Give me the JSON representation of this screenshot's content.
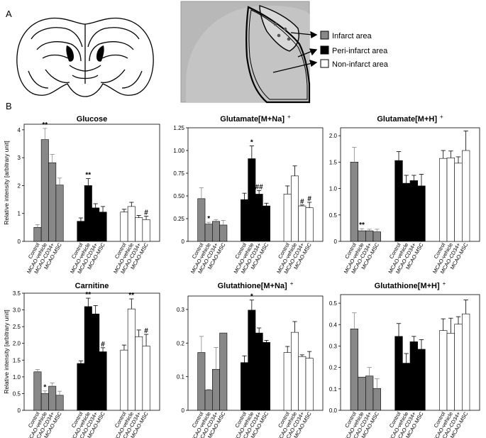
{
  "panel_labels": {
    "a": "A",
    "b": "B"
  },
  "legend": [
    {
      "label": "Infarct area",
      "color": "#888888"
    },
    {
      "label": "Peri-infarct area",
      "color": "#000000"
    },
    {
      "label": "Non-infarct area",
      "color": "#ffffff"
    }
  ],
  "colors": {
    "infarct": "#888888",
    "peri": "#000000",
    "non": "#ffffff",
    "stroke": "#000000"
  },
  "chart_data": [
    {
      "type": "bar",
      "title": "Glucose",
      "ylabel": "Relative intensity [arbitrary unit]",
      "ylim": [
        0,
        4.2
      ],
      "yticks": [
        0,
        1,
        2,
        3,
        4
      ],
      "yticklabels": [
        "0",
        "1",
        "2",
        "3",
        "4"
      ],
      "categories": [
        "Control",
        "MCAO-vehicle",
        "MCAO-CD34+",
        "MCAO-MSC"
      ],
      "series": [
        {
          "name": "Infarct area",
          "values": [
            0.5,
            3.65,
            2.82,
            2.02
          ],
          "errors": [
            0.1,
            0.4,
            0.3,
            0.25
          ],
          "marks": [
            "",
            "**",
            "",
            ""
          ]
        },
        {
          "name": "Peri-infarct area",
          "values": [
            0.72,
            2.0,
            1.2,
            1.05
          ],
          "errors": [
            0.12,
            0.25,
            0.15,
            0.2
          ],
          "marks": [
            "",
            "**",
            "",
            ""
          ]
        },
        {
          "name": "Non-infarct area",
          "values": [
            1.05,
            1.25,
            0.85,
            0.78
          ],
          "errors": [
            0.1,
            0.15,
            0.08,
            0.12
          ],
          "marks": [
            "",
            "",
            "",
            "#"
          ]
        }
      ]
    },
    {
      "type": "bar",
      "title": "Glutamate[M+Na]",
      "title_sup": "+",
      "ylabel": "",
      "ylim": [
        0,
        1.25
      ],
      "yticks": [
        0,
        0.25,
        0.5,
        0.75,
        1.0,
        1.25
      ],
      "yticklabels": [
        "0",
        "0.25",
        "0.50",
        "0.75",
        "1.00",
        "1.25"
      ],
      "categories": [
        "Control",
        "MCAO-vehicle",
        "MCAO-CD34+",
        "MCAO-MSC"
      ],
      "series": [
        {
          "name": "Infarct area",
          "values": [
            0.47,
            0.19,
            0.22,
            0.18
          ],
          "errors": [
            0.12,
            0.02,
            0.02,
            0.05
          ],
          "marks": [
            "",
            "*",
            "",
            ""
          ]
        },
        {
          "name": "Peri-infarct area",
          "values": [
            0.46,
            0.91,
            0.52,
            0.39
          ],
          "errors": [
            0.07,
            0.14,
            0.04,
            0.03
          ],
          "marks": [
            "",
            "*",
            "##",
            ""
          ]
        },
        {
          "name": "Non-infarct area",
          "values": [
            0.52,
            0.72,
            0.39,
            0.37
          ],
          "errors": [
            0.09,
            0.11,
            0.01,
            0.06
          ],
          "marks": [
            "",
            "",
            "#",
            "#"
          ]
        }
      ]
    },
    {
      "type": "bar",
      "title": "Glutamate[M+H]",
      "title_sup": "+",
      "ylabel": "",
      "ylim": [
        0,
        2.15
      ],
      "yticks": [
        0,
        0.5,
        1.0,
        1.5,
        2.0
      ],
      "yticklabels": [
        "0",
        "0.5",
        "1.0",
        "1.5",
        "2.0"
      ],
      "categories": [
        "Control",
        "MCAO-vehicle",
        "MCAO-CD34+",
        "MCAO-MSC"
      ],
      "series": [
        {
          "name": "Infarct area",
          "values": [
            1.5,
            0.2,
            0.2,
            0.18
          ],
          "errors": [
            0.28,
            0.04,
            0.03,
            0.05
          ],
          "marks": [
            "",
            "**",
            "",
            ""
          ]
        },
        {
          "name": "Peri-infarct area",
          "values": [
            1.53,
            1.1,
            1.15,
            1.05
          ],
          "errors": [
            0.17,
            0.15,
            0.1,
            0.22
          ],
          "marks": [
            "",
            "",
            "",
            ""
          ]
        },
        {
          "name": "Non-infarct area",
          "values": [
            1.57,
            1.58,
            1.48,
            1.72
          ],
          "errors": [
            0.15,
            0.13,
            0.12,
            0.37
          ],
          "marks": [
            "",
            "",
            "",
            ""
          ]
        }
      ]
    },
    {
      "type": "bar",
      "title": "Carnitine",
      "ylabel": "Relative intensity [arbitrary unit]",
      "ylim": [
        0,
        3.5
      ],
      "yticks": [
        0,
        0.5,
        1.0,
        1.5,
        2.0,
        2.5,
        3.0,
        3.5
      ],
      "yticklabels": [
        "0",
        "0.5",
        "1.0",
        "1.5",
        "2.0",
        "2.5",
        "3.0",
        "3.5"
      ],
      "categories": [
        "Control",
        "MCAO-vehicle",
        "MCAO-CD34+",
        "MCAO-MSC"
      ],
      "series": [
        {
          "name": "Infarct area",
          "values": [
            1.15,
            0.5,
            0.72,
            0.45
          ],
          "errors": [
            0.07,
            0.08,
            0.1,
            0.12
          ],
          "marks": [
            "",
            "*",
            "",
            ""
          ]
        },
        {
          "name": "Peri-infarct area",
          "values": [
            1.4,
            3.1,
            2.88,
            1.75
          ],
          "errors": [
            0.08,
            0.25,
            0.25,
            0.12
          ],
          "marks": [
            "",
            "**",
            "",
            "#"
          ]
        },
        {
          "name": "Non-infarct area",
          "values": [
            1.8,
            3.03,
            2.2,
            1.92
          ],
          "errors": [
            0.15,
            0.3,
            0.2,
            0.35
          ],
          "marks": [
            "",
            "**",
            "",
            "#"
          ]
        }
      ]
    },
    {
      "type": "bar",
      "title": "Glutathione[M+Na]",
      "title_sup": "+",
      "ylabel": "",
      "ylim": [
        0,
        0.34
      ],
      "yticks": [
        0,
        0.1,
        0.2,
        0.3
      ],
      "yticklabels": [
        "0",
        "0.1",
        "0.2",
        "0.3"
      ],
      "categories": [
        "Control",
        "MCAO-vehicle",
        "MCAO-CD34+",
        "MCAO-MSC"
      ],
      "series": [
        {
          "name": "Infarct area",
          "values": [
            0.172,
            0.06,
            0.122,
            0.23
          ],
          "errors": [
            0.048,
            0.002,
            0.065,
            0.0
          ],
          "marks": [
            "",
            "",
            "",
            ""
          ]
        },
        {
          "name": "Peri-infarct area",
          "values": [
            0.142,
            0.298,
            0.23,
            0.202
          ],
          "errors": [
            0.02,
            0.03,
            0.015,
            0.006
          ],
          "marks": [
            "",
            "*",
            "",
            ""
          ]
        },
        {
          "name": "Non-infarct area",
          "values": [
            0.172,
            0.232,
            0.16,
            0.155
          ],
          "errors": [
            0.018,
            0.032,
            0.005,
            0.02
          ],
          "marks": [
            "",
            "",
            "",
            ""
          ]
        }
      ]
    },
    {
      "type": "bar",
      "title": "Glutathione[M+H]",
      "title_sup": "+",
      "ylabel": "",
      "ylim": [
        0,
        0.54
      ],
      "yticks": [
        0,
        0.1,
        0.2,
        0.3,
        0.4,
        0.5
      ],
      "yticklabels": [
        "0.0",
        "0.1",
        "0.2",
        "0.3",
        "0.4",
        "0.5"
      ],
      "categories": [
        "Control",
        "MCAO-vehicle",
        "MCAO-CD34+",
        "MCAO-MSC"
      ],
      "series": [
        {
          "name": "Infarct area",
          "values": [
            0.38,
            0.155,
            0.16,
            0.102
          ],
          "errors": [
            0.075,
            0.0,
            0.04,
            0.045
          ],
          "marks": [
            "",
            "",
            "",
            ""
          ]
        },
        {
          "name": "Peri-infarct area",
          "values": [
            0.345,
            0.22,
            0.32,
            0.285
          ],
          "errors": [
            0.06,
            0.045,
            0.025,
            0.045
          ],
          "marks": [
            "",
            "",
            "",
            ""
          ]
        },
        {
          "name": "Non-infarct area",
          "values": [
            0.372,
            0.36,
            0.402,
            0.45
          ],
          "errors": [
            0.055,
            0.07,
            0.035,
            0.065
          ],
          "marks": [
            "",
            "",
            "",
            ""
          ]
        }
      ]
    }
  ]
}
